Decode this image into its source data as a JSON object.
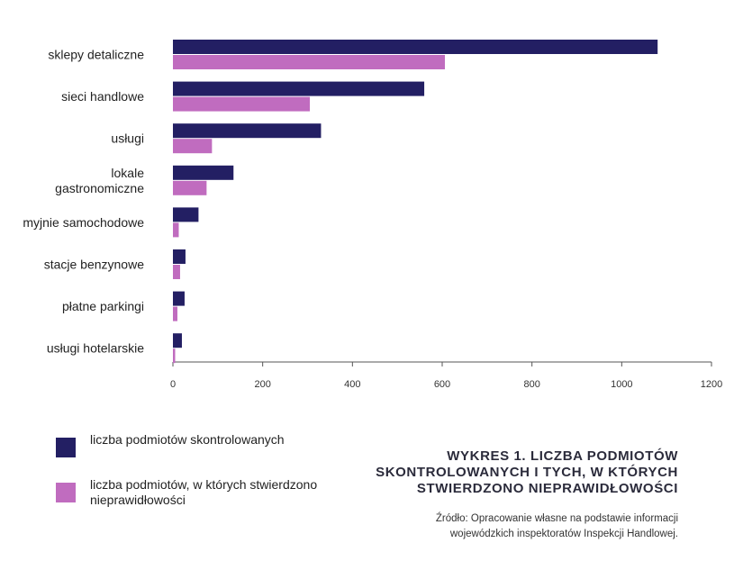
{
  "chart_data": {
    "type": "bar",
    "orientation": "horizontal",
    "categories": [
      "sklepy detaliczne",
      "sieci handlowe",
      "usługi",
      "lokale\ngastronomiczne",
      "myjnie samochodowe",
      "stacje benzynowe",
      "płatne parkingi",
      "usługi hotelarskie"
    ],
    "series": [
      {
        "name": "liczba podmiotów skontrolowanych",
        "color": "#231f63",
        "values": [
          1080,
          560,
          330,
          135,
          57,
          28,
          26,
          20
        ]
      },
      {
        "name": "liczba podmiotów, w których stwierdzono nieprawidłowości",
        "color": "#c06cbf",
        "values": [
          606,
          305,
          87,
          75,
          13,
          16,
          10,
          5
        ]
      }
    ],
    "xlim": [
      0,
      1200
    ],
    "xticks": [
      "0",
      "200",
      "400",
      "600",
      "800",
      "1000",
      "1200"
    ],
    "grid": false,
    "legend_placement": "bottom-left",
    "title": "WYKRES 1. LICZBA PODMIOTÓW\nSKONTROLOWANYCH I TYCH, W KTÓRYCH\nSTWIERDZONO NIEPRAWIDŁOWOŚCI",
    "source": "Źródło: Opracowanie własne na podstawie informacji\nwojewódzkich inspektoratów Inspekcji Handlowej."
  }
}
